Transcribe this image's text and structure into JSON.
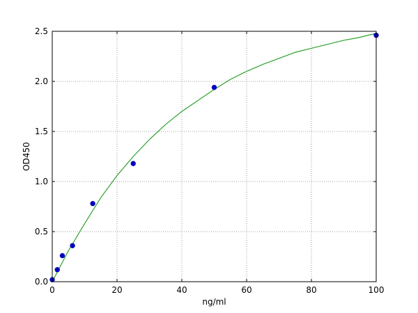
{
  "chart_data": {
    "type": "scatter",
    "xlabel": "ng/ml",
    "ylabel": "OD450",
    "xlim": [
      0,
      100
    ],
    "ylim": [
      0,
      2.5
    ],
    "x_ticks": [
      0,
      20,
      40,
      60,
      80,
      100
    ],
    "y_ticks": [
      0.0,
      0.5,
      1.0,
      1.5,
      2.0,
      2.5
    ],
    "x_tick_labels": [
      "0",
      "20",
      "40",
      "60",
      "80",
      "100"
    ],
    "y_tick_labels": [
      "0.0",
      "0.5",
      "1.0",
      "1.5",
      "2.0",
      "2.5"
    ],
    "grid": true,
    "series": [
      {
        "kind": "points",
        "color": "#0000bf",
        "x": [
          0,
          1.56,
          3.12,
          6.25,
          12.5,
          25,
          50,
          100
        ],
        "y": [
          0.02,
          0.12,
          0.26,
          0.36,
          0.78,
          1.18,
          1.94,
          2.46
        ]
      },
      {
        "kind": "fit-curve",
        "color": "#2ca02c",
        "x": [
          0,
          5,
          10,
          15,
          20,
          25,
          30,
          35,
          40,
          45,
          50,
          55,
          60,
          65,
          70,
          75,
          80,
          85,
          90,
          95,
          100
        ],
        "y": [
          0.0,
          0.31,
          0.58,
          0.84,
          1.06,
          1.25,
          1.42,
          1.57,
          1.7,
          1.81,
          1.92,
          2.02,
          2.1,
          2.17,
          2.23,
          2.29,
          2.33,
          2.37,
          2.41,
          2.44,
          2.48
        ]
      }
    ]
  }
}
